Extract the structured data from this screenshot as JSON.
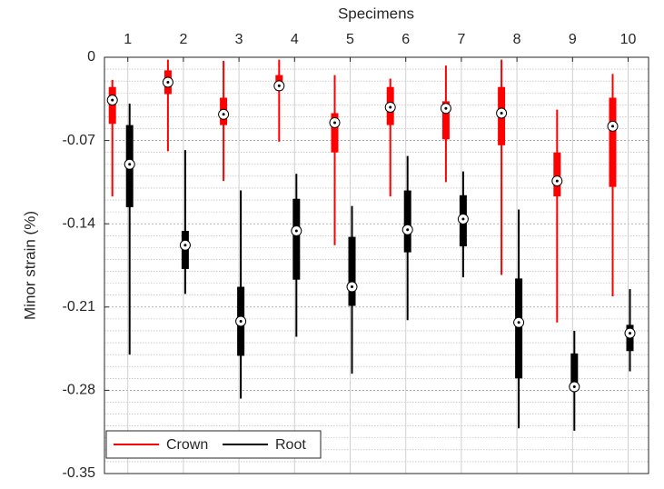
{
  "chart_data": {
    "type": "box",
    "title": "Specimens",
    "y_label": "Minor strain (%)",
    "categories": [
      "1",
      "2",
      "3",
      "4",
      "5",
      "6",
      "7",
      "8",
      "9",
      "10"
    ],
    "ylim": [
      -0.35,
      0
    ],
    "yticks": [
      0,
      -0.07,
      -0.14,
      -0.21,
      -0.28,
      -0.35
    ],
    "grid": true,
    "legend": "lower left",
    "series": [
      {
        "name": "Crown",
        "color": "#ff0000",
        "min": [
          -0.117,
          -0.079,
          -0.104,
          -0.071,
          -0.158,
          -0.117,
          -0.105,
          -0.183,
          -0.223,
          -0.201
        ],
        "q1": [
          -0.056,
          -0.031,
          -0.057,
          -0.028,
          -0.08,
          -0.057,
          -0.069,
          -0.074,
          -0.117,
          -0.109
        ],
        "median": [
          -0.036,
          -0.021,
          -0.048,
          -0.024,
          -0.055,
          -0.042,
          -0.043,
          -0.047,
          -0.104,
          -0.058
        ],
        "q3": [
          -0.025,
          -0.011,
          -0.034,
          -0.015,
          -0.047,
          -0.025,
          -0.037,
          -0.025,
          -0.08,
          -0.034
        ],
        "max": [
          -0.019,
          -0.002,
          -0.003,
          -0.002,
          -0.015,
          -0.018,
          -0.007,
          -0.002,
          -0.044,
          -0.014
        ]
      },
      {
        "name": "Root",
        "color": "#000000",
        "min": [
          -0.25,
          -0.199,
          -0.287,
          -0.235,
          -0.266,
          -0.221,
          -0.185,
          -0.312,
          -0.314,
          -0.264
        ],
        "q1": [
          -0.126,
          -0.178,
          -0.251,
          -0.187,
          -0.209,
          -0.164,
          -0.159,
          -0.27,
          -0.277,
          -0.247
        ],
        "median": [
          -0.09,
          -0.158,
          -0.222,
          -0.146,
          -0.193,
          -0.145,
          -0.136,
          -0.223,
          -0.277,
          -0.232
        ],
        "q3": [
          -0.057,
          -0.146,
          -0.193,
          -0.119,
          -0.151,
          -0.112,
          -0.116,
          -0.186,
          -0.249,
          -0.225
        ],
        "max": [
          -0.039,
          -0.078,
          -0.112,
          -0.098,
          -0.125,
          -0.083,
          -0.096,
          -0.128,
          -0.23,
          -0.195
        ]
      }
    ]
  }
}
